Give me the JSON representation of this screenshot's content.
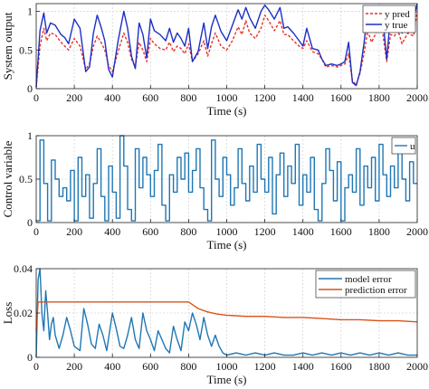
{
  "chart_data": [
    {
      "type": "line",
      "xlabel": "Time (s)",
      "ylabel": "System output",
      "xlim": [
        0,
        2000
      ],
      "ylim": [
        0,
        1.1
      ],
      "xticks": [
        0,
        200,
        400,
        600,
        800,
        1000,
        1200,
        1400,
        1600,
        1800,
        2000
      ],
      "yticks": [
        0,
        0.5,
        1
      ],
      "ytick_labels": [
        "0",
        "0.5",
        "1"
      ],
      "grid": true,
      "legend": "top-right",
      "series": [
        {
          "name": "y pred",
          "color": "#e8322a",
          "style": "dashed",
          "x": [
            0,
            20,
            40,
            55,
            75,
            100,
            130,
            150,
            170,
            200,
            230,
            260,
            280,
            300,
            320,
            340,
            360,
            380,
            400,
            430,
            460,
            480,
            500,
            520,
            540,
            560,
            580,
            600,
            620,
            650,
            680,
            700,
            720,
            740,
            760,
            780,
            800,
            820,
            850,
            880,
            900,
            920,
            940,
            970,
            1000,
            1030,
            1060,
            1080,
            1100,
            1120,
            1150,
            1180,
            1200,
            1220,
            1250,
            1280,
            1300,
            1320,
            1350,
            1380,
            1400,
            1420,
            1450,
            1480,
            1500,
            1520,
            1550,
            1580,
            1600,
            1620,
            1640,
            1660,
            1680,
            1700,
            1720,
            1740,
            1760,
            1780,
            1800,
            1820,
            1840,
            1860,
            1880,
            1900,
            1920,
            1950,
            1980,
            2000
          ],
          "values": [
            0.02,
            0.55,
            0.78,
            0.62,
            0.72,
            0.7,
            0.6,
            0.55,
            0.5,
            0.65,
            0.55,
            0.25,
            0.32,
            0.55,
            0.68,
            0.6,
            0.5,
            0.3,
            0.22,
            0.48,
            0.72,
            0.6,
            0.38,
            0.28,
            0.6,
            0.5,
            0.35,
            0.65,
            0.58,
            0.52,
            0.5,
            0.6,
            0.48,
            0.55,
            0.52,
            0.45,
            0.58,
            0.35,
            0.45,
            0.62,
            0.42,
            0.58,
            0.72,
            0.55,
            0.5,
            0.62,
            0.8,
            0.7,
            0.88,
            0.72,
            0.65,
            0.78,
            0.95,
            0.88,
            0.75,
            0.88,
            0.7,
            0.7,
            0.62,
            0.55,
            0.52,
            0.62,
            0.48,
            0.45,
            0.38,
            0.28,
            0.3,
            0.28,
            0.3,
            0.32,
            0.45,
            0.1,
            0.05,
            0.2,
            0.45,
            0.75,
            0.6,
            0.7,
            0.82,
            0.7,
            0.35,
            0.7,
            0.68,
            0.75,
            0.58,
            0.72,
            0.68,
            1.0
          ]
        },
        {
          "name": "y true",
          "color": "#1c2fc4",
          "style": "solid",
          "x": [
            0,
            20,
            40,
            55,
            75,
            100,
            130,
            150,
            170,
            200,
            230,
            260,
            280,
            300,
            320,
            340,
            360,
            380,
            400,
            430,
            460,
            480,
            500,
            520,
            540,
            560,
            580,
            600,
            620,
            650,
            680,
            700,
            720,
            740,
            760,
            780,
            800,
            820,
            850,
            880,
            900,
            920,
            940,
            970,
            1000,
            1030,
            1060,
            1080,
            1100,
            1120,
            1150,
            1180,
            1200,
            1220,
            1250,
            1280,
            1300,
            1320,
            1350,
            1380,
            1400,
            1420,
            1450,
            1480,
            1500,
            1520,
            1550,
            1580,
            1600,
            1620,
            1640,
            1660,
            1680,
            1700,
            1720,
            1740,
            1760,
            1780,
            1800,
            1820,
            1840,
            1860,
            1880,
            1900,
            1920,
            1950,
            1980,
            2000
          ],
          "values": [
            0.02,
            0.75,
            0.98,
            0.72,
            0.85,
            0.82,
            0.7,
            0.66,
            0.58,
            0.9,
            0.78,
            0.22,
            0.28,
            0.72,
            0.95,
            0.8,
            0.62,
            0.25,
            0.15,
            0.62,
            1.0,
            0.78,
            0.42,
            0.26,
            0.85,
            0.7,
            0.4,
            0.9,
            0.75,
            0.7,
            0.62,
            0.78,
            0.6,
            0.72,
            0.65,
            0.55,
            0.78,
            0.35,
            0.48,
            0.85,
            0.52,
            0.8,
            0.95,
            0.74,
            0.62,
            0.82,
            1.02,
            0.9,
            1.05,
            0.92,
            0.78,
            1.0,
            1.08,
            1.02,
            0.9,
            1.05,
            0.78,
            0.8,
            0.72,
            0.62,
            0.55,
            0.78,
            0.52,
            0.5,
            0.38,
            0.3,
            0.32,
            0.3,
            0.32,
            0.35,
            0.6,
            0.08,
            0.04,
            0.22,
            0.58,
            1.0,
            0.8,
            0.92,
            1.05,
            0.9,
            0.38,
            0.95,
            0.88,
            1.0,
            0.72,
            0.98,
            0.88,
            1.1
          ]
        }
      ]
    },
    {
      "type": "line",
      "xlabel": "Time (s)",
      "ylabel": "Control variable",
      "xlim": [
        0,
        2000
      ],
      "ylim": [
        0,
        1
      ],
      "xticks": [
        0,
        200,
        400,
        600,
        800,
        1000,
        1200,
        1400,
        1600,
        1800,
        2000
      ],
      "yticks": [
        0,
        0.5,
        1
      ],
      "ytick_labels": [
        "0",
        "0.5",
        "1"
      ],
      "grid": true,
      "legend": "top-right",
      "series": [
        {
          "name": "u",
          "color": "#1f77b4",
          "style": "step",
          "x": [
            0,
            20,
            40,
            60,
            80,
            100,
            120,
            140,
            160,
            180,
            200,
            220,
            240,
            260,
            280,
            300,
            320,
            340,
            360,
            380,
            400,
            420,
            440,
            460,
            480,
            500,
            520,
            540,
            560,
            580,
            600,
            620,
            640,
            660,
            680,
            700,
            720,
            740,
            760,
            780,
            800,
            820,
            840,
            860,
            880,
            900,
            920,
            940,
            960,
            980,
            1000,
            1020,
            1040,
            1060,
            1080,
            1100,
            1120,
            1140,
            1160,
            1180,
            1200,
            1220,
            1240,
            1260,
            1280,
            1300,
            1320,
            1340,
            1360,
            1380,
            1400,
            1420,
            1440,
            1460,
            1480,
            1500,
            1520,
            1540,
            1560,
            1580,
            1600,
            1620,
            1640,
            1660,
            1680,
            1700,
            1720,
            1740,
            1760,
            1780,
            1800,
            1820,
            1840,
            1860,
            1880,
            1900,
            1920,
            1940,
            1960,
            1980
          ],
          "values": [
            0.02,
            0.95,
            0.45,
            0.02,
            0.72,
            0.5,
            0.3,
            0.4,
            0.25,
            0.6,
            0.02,
            0.75,
            0.3,
            0.55,
            0.05,
            0.45,
            0.85,
            0.3,
            0.02,
            0.65,
            0.35,
            0.05,
            1.0,
            0.65,
            0.15,
            0.02,
            0.85,
            0.4,
            0.75,
            0.55,
            0.3,
            0.6,
            0.9,
            0.2,
            0.02,
            0.55,
            0.35,
            0.75,
            0.5,
            0.8,
            0.35,
            0.6,
            0.85,
            0.4,
            0.15,
            0.02,
            0.95,
            0.5,
            0.3,
            0.75,
            0.55,
            0.2,
            0.4,
            0.85,
            0.45,
            0.25,
            0.65,
            0.35,
            0.9,
            0.5,
            0.35,
            0.75,
            0.1,
            0.55,
            0.8,
            0.3,
            0.65,
            0.45,
            0.9,
            0.2,
            0.55,
            0.35,
            0.75,
            0.15,
            0.02,
            0.45,
            0.85,
            0.6,
            0.25,
            0.7,
            0.02,
            0.4,
            0.55,
            0.35,
            0.85,
            0.2,
            0.65,
            0.4,
            0.75,
            0.25,
            0.9,
            0.55,
            0.3,
            0.65,
            0.4,
            0.85,
            0.5,
            0.25,
            0.7,
            0.45
          ]
        }
      ]
    },
    {
      "type": "line",
      "xlabel": "Time (s)",
      "ylabel": "Loss",
      "xlim": [
        0,
        2000
      ],
      "ylim": [
        0,
        0.04
      ],
      "xticks": [
        0,
        200,
        400,
        600,
        800,
        1000,
        1200,
        1400,
        1600,
        1800,
        2000
      ],
      "yticks": [
        0,
        0.02,
        0.04
      ],
      "ytick_labels": [
        "0",
        "0.02",
        "0.04"
      ],
      "grid": true,
      "legend": "top-right",
      "series": [
        {
          "name": "model error",
          "color": "#1f77b4",
          "style": "solid",
          "x": [
            0,
            10,
            20,
            30,
            40,
            50,
            60,
            70,
            80,
            90,
            100,
            120,
            140,
            160,
            180,
            200,
            230,
            250,
            270,
            290,
            310,
            330,
            350,
            370,
            400,
            420,
            440,
            460,
            480,
            500,
            520,
            540,
            560,
            580,
            600,
            620,
            640,
            660,
            680,
            700,
            720,
            740,
            760,
            780,
            800,
            820,
            840,
            860,
            880,
            900,
            920,
            940,
            960,
            980,
            1000,
            1050,
            1100,
            1150,
            1200,
            1250,
            1300,
            1350,
            1400,
            1450,
            1500,
            1550,
            1600,
            1650,
            1700,
            1750,
            1800,
            1850,
            1900,
            1950,
            2000
          ],
          "values": [
            0.0,
            0.035,
            0.04,
            0.02,
            0.012,
            0.03,
            0.02,
            0.008,
            0.015,
            0.018,
            0.01,
            0.004,
            0.01,
            0.018,
            0.012,
            0.005,
            0.003,
            0.022,
            0.015,
            0.006,
            0.004,
            0.015,
            0.01,
            0.003,
            0.02,
            0.013,
            0.005,
            0.004,
            0.01,
            0.018,
            0.008,
            0.004,
            0.02,
            0.012,
            0.008,
            0.003,
            0.012,
            0.008,
            0.004,
            0.002,
            0.014,
            0.008,
            0.003,
            0.016,
            0.012,
            0.02,
            0.015,
            0.008,
            0.018,
            0.01,
            0.005,
            0.01,
            0.005,
            0.002,
            0.001,
            0.002,
            0.001,
            0.002,
            0.001,
            0.002,
            0.001,
            0.001,
            0.002,
            0.001,
            0.002,
            0.001,
            0.002,
            0.001,
            0.002,
            0.001,
            0.002,
            0.001,
            0.002,
            0.001,
            0.001
          ]
        },
        {
          "name": "prediction error",
          "color": "#d95319",
          "style": "solid",
          "x": [
            0,
            10,
            20,
            40,
            100,
            200,
            300,
            400,
            500,
            600,
            700,
            800,
            850,
            900,
            950,
            1000,
            1100,
            1200,
            1300,
            1400,
            1500,
            1600,
            1700,
            1800,
            1900,
            2000
          ],
          "values": [
            0.012,
            0.025,
            0.025,
            0.025,
            0.025,
            0.025,
            0.025,
            0.025,
            0.025,
            0.025,
            0.025,
            0.025,
            0.022,
            0.0205,
            0.0195,
            0.019,
            0.0185,
            0.0185,
            0.018,
            0.018,
            0.0175,
            0.017,
            0.017,
            0.0165,
            0.0165,
            0.016
          ]
        }
      ]
    }
  ]
}
